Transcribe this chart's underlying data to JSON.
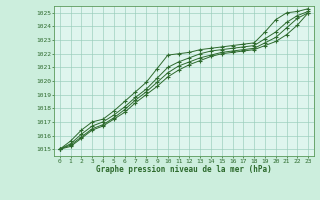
{
  "background_color": "#cceedd",
  "plot_bg_color": "#dff5ee",
  "grid_color": "#99ccbb",
  "line_color": "#2d6a2d",
  "spine_color": "#5a9a5a",
  "title": "Graphe pression niveau de la mer (hPa)",
  "xlim": [
    -0.5,
    23.5
  ],
  "ylim": [
    1014.5,
    1025.5
  ],
  "yticks": [
    1015,
    1016,
    1017,
    1018,
    1019,
    1020,
    1021,
    1022,
    1023,
    1024,
    1025
  ],
  "xticks": [
    0,
    1,
    2,
    3,
    4,
    5,
    6,
    7,
    8,
    9,
    10,
    11,
    12,
    13,
    14,
    15,
    16,
    17,
    18,
    19,
    20,
    21,
    22,
    23
  ],
  "series": [
    [
      1015.0,
      1015.6,
      1016.4,
      1017.0,
      1017.2,
      1017.8,
      1018.5,
      1019.2,
      1019.9,
      1020.9,
      1021.9,
      1022.0,
      1022.1,
      1022.3,
      1022.4,
      1022.5,
      1022.6,
      1022.7,
      1022.8,
      1023.6,
      1024.5,
      1025.0,
      1025.1,
      1025.3
    ],
    [
      1015.0,
      1015.4,
      1016.1,
      1016.7,
      1017.0,
      1017.5,
      1018.1,
      1018.8,
      1019.4,
      1020.2,
      1021.0,
      1021.4,
      1021.7,
      1022.0,
      1022.2,
      1022.3,
      1022.4,
      1022.5,
      1022.6,
      1023.1,
      1023.6,
      1024.3,
      1024.8,
      1025.1
    ],
    [
      1015.0,
      1015.3,
      1015.9,
      1016.5,
      1016.8,
      1017.3,
      1017.9,
      1018.6,
      1019.2,
      1019.9,
      1020.6,
      1021.1,
      1021.4,
      1021.7,
      1021.9,
      1022.1,
      1022.2,
      1022.3,
      1022.4,
      1022.8,
      1023.2,
      1023.9,
      1024.6,
      1025.0
    ],
    [
      1015.0,
      1015.2,
      1015.8,
      1016.4,
      1016.7,
      1017.2,
      1017.7,
      1018.4,
      1019.0,
      1019.6,
      1020.3,
      1020.8,
      1021.2,
      1021.5,
      1021.8,
      1022.0,
      1022.1,
      1022.2,
      1022.3,
      1022.6,
      1022.9,
      1023.4,
      1024.1,
      1025.0
    ]
  ]
}
